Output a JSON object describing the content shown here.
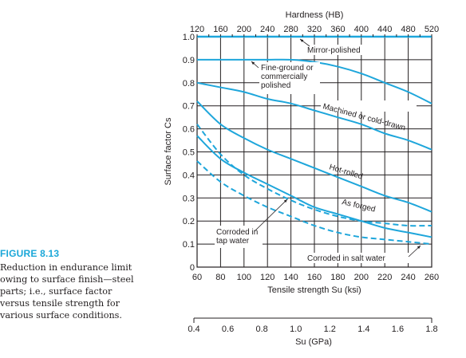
{
  "figure": {
    "label": "FIGURE 8.13",
    "caption_lines": [
      "Reduction in endurance limit",
      "owing to surface finish—steel",
      "parts; i.e., surface factor",
      "versus tensile strength for",
      "various surface conditions."
    ]
  },
  "colors": {
    "curve": "#1ea6db",
    "grid": "#231f20",
    "caption_accent": "#1aa7d8"
  },
  "chart_data": {
    "type": "line",
    "ylabel": "Surface factor Cs",
    "xlabel": "Tensile strength Su (ksi)",
    "top_axis_label": "Hardness (HB)",
    "bottom_axis_label": "Su (GPa)",
    "xlim": [
      60,
      260
    ],
    "ylim": [
      0,
      1.0
    ],
    "grid": true,
    "x_ticks": [
      60,
      80,
      100,
      120,
      140,
      160,
      180,
      200,
      220,
      240,
      260
    ],
    "y_ticks": [
      0,
      0.1,
      0.2,
      0.3,
      0.4,
      0.5,
      0.6,
      0.7,
      0.8,
      0.9,
      1.0
    ],
    "y_tick_labels": [
      "0",
      "0.1",
      "0.2",
      "0.3",
      "0.4",
      "0.5",
      "0.6",
      "0.7",
      "0.8",
      "0.9",
      "1.0"
    ],
    "hardness_ticks": [
      120,
      160,
      200,
      240,
      280,
      320,
      360,
      400,
      440,
      480,
      520
    ],
    "gpa_ticks": [
      "0.4",
      "0.6",
      "0.8",
      "1.0",
      "1.2",
      "1.4",
      "1.6",
      "1.8"
    ],
    "gpa_xlim": [
      0.4,
      1.8
    ],
    "series": [
      {
        "name": "Mirror-polished",
        "dashed": false,
        "x": [
          60,
          260
        ],
        "y": [
          1.0,
          1.0
        ]
      },
      {
        "name": "Fine-ground or commercially polished",
        "dashed": false,
        "x": [
          60,
          100,
          120,
          140,
          160,
          180,
          200,
          220,
          240,
          260
        ],
        "y": [
          0.9,
          0.9,
          0.9,
          0.9,
          0.89,
          0.87,
          0.84,
          0.8,
          0.76,
          0.71
        ]
      },
      {
        "name": "Machined or cold-drawn",
        "dashed": false,
        "x": [
          60,
          80,
          100,
          120,
          140,
          160,
          180,
          200,
          220,
          240,
          260
        ],
        "y": [
          0.8,
          0.78,
          0.76,
          0.73,
          0.71,
          0.68,
          0.65,
          0.62,
          0.58,
          0.55,
          0.51
        ]
      },
      {
        "name": "Hot-rolled",
        "dashed": false,
        "x": [
          60,
          80,
          100,
          120,
          140,
          160,
          180,
          200,
          220,
          240,
          260
        ],
        "y": [
          0.72,
          0.62,
          0.56,
          0.51,
          0.47,
          0.43,
          0.39,
          0.35,
          0.31,
          0.28,
          0.24
        ]
      },
      {
        "name": "As forged",
        "dashed": false,
        "x": [
          60,
          80,
          100,
          120,
          140,
          160,
          180,
          200,
          220,
          240,
          260
        ],
        "y": [
          0.57,
          0.47,
          0.41,
          0.36,
          0.31,
          0.26,
          0.23,
          0.2,
          0.17,
          0.15,
          0.13
        ]
      },
      {
        "name": "Corroded in tap water",
        "dashed": true,
        "x": [
          60,
          80,
          100,
          120,
          140,
          160,
          180,
          200,
          220,
          240,
          260
        ],
        "y": [
          0.62,
          0.49,
          0.4,
          0.34,
          0.29,
          0.25,
          0.22,
          0.2,
          0.19,
          0.18,
          0.18
        ]
      },
      {
        "name": "Corroded in salt water",
        "dashed": true,
        "x": [
          60,
          80,
          100,
          120,
          140,
          160,
          180,
          200,
          220,
          240,
          260
        ],
        "y": [
          0.46,
          0.37,
          0.31,
          0.26,
          0.22,
          0.18,
          0.15,
          0.13,
          0.12,
          0.11,
          0.1
        ]
      }
    ],
    "annotations": [
      {
        "text": "Mirror-polished",
        "series": 0
      },
      {
        "text": "Fine-ground or\ncommercially\npolished",
        "series": 1
      },
      {
        "text": "Machined or cold-drawn",
        "series": 2
      },
      {
        "text": "Hot-rolled",
        "series": 3
      },
      {
        "text": "As forged",
        "series": 4
      },
      {
        "text": "Corroded in\ntap water",
        "series": 5
      },
      {
        "text": "Corroded in salt water",
        "series": 6
      }
    ]
  }
}
